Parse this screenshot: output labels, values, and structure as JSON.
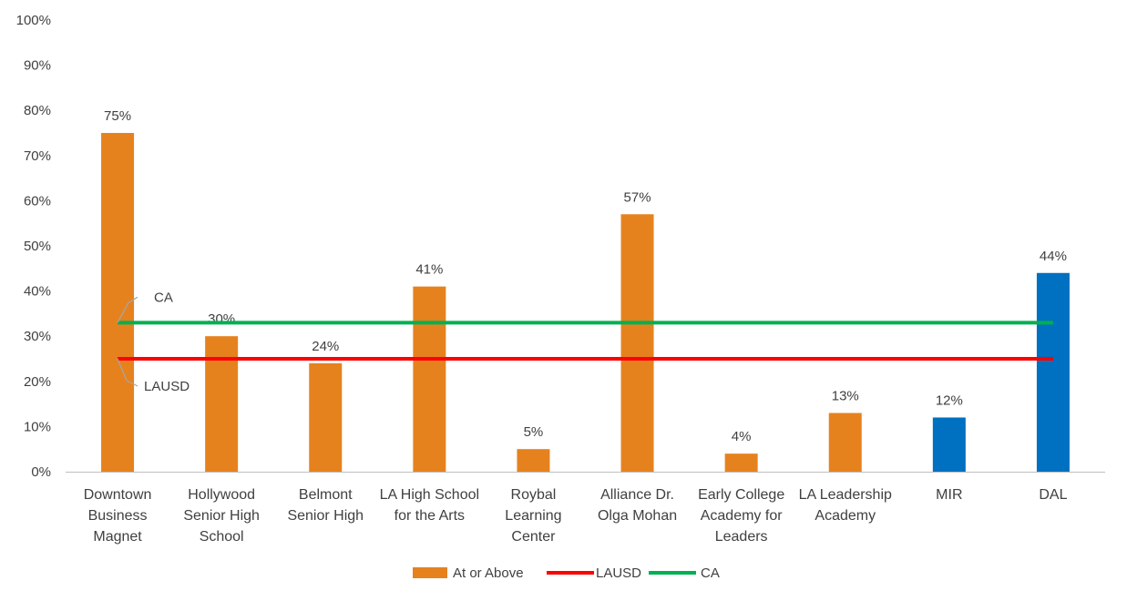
{
  "chart_data": {
    "type": "bar",
    "title": "",
    "xlabel": "",
    "ylabel": "",
    "ylim": [
      0,
      100
    ],
    "yticks": [
      "0%",
      "10%",
      "20%",
      "30%",
      "40%",
      "50%",
      "60%",
      "70%",
      "80%",
      "90%",
      "100%"
    ],
    "categories": [
      [
        "Downtown",
        "Business",
        "Magnet"
      ],
      [
        "Hollywood",
        "Senior High",
        "School"
      ],
      [
        "Belmont",
        "Senior High"
      ],
      [
        "LA High School",
        "for the Arts"
      ],
      [
        "Roybal",
        "Learning",
        "Center"
      ],
      [
        "Alliance Dr.",
        "Olga Mohan"
      ],
      [
        "Early College",
        "Academy for",
        "Leaders"
      ],
      [
        "LA Leadership",
        "Academy"
      ],
      [
        "MIR"
      ],
      [
        "DAL"
      ]
    ],
    "values": [
      75,
      30,
      24,
      41,
      5,
      57,
      4,
      13,
      12,
      44
    ],
    "data_labels": [
      "75%",
      "30%",
      "24%",
      "41%",
      "5%",
      "57%",
      "4%",
      "13%",
      "12%",
      "44%"
    ],
    "bar_colors": [
      "#E6821E",
      "#E6821E",
      "#E6821E",
      "#E6821E",
      "#E6821E",
      "#E6821E",
      "#E6821E",
      "#E6821E",
      "#0070C0",
      "#0070C0"
    ],
    "series": [
      {
        "name": "At or Above",
        "type": "bar",
        "color": "#E6821E"
      },
      {
        "name": "LAUSD",
        "type": "line",
        "value": 25,
        "color": "#FF0000"
      },
      {
        "name": "CA",
        "type": "line",
        "value": 33,
        "color": "#00B050"
      }
    ],
    "reference_labels": [
      "CA",
      "LAUSD"
    ],
    "grid": false,
    "legend": "bottom"
  }
}
